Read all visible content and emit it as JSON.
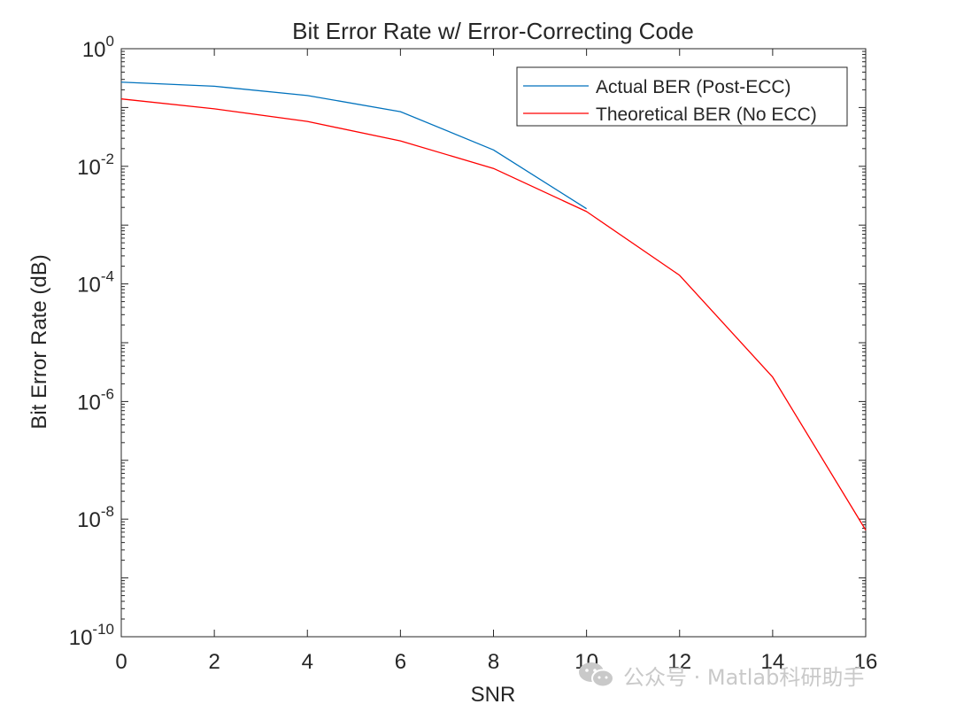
{
  "chart_data": {
    "type": "line",
    "title": "Bit Error Rate w/ Error-Correcting Code",
    "xlabel": "SNR",
    "ylabel": "Bit Error Rate (dB)",
    "xscale": "linear",
    "yscale": "log",
    "xlim": [
      0,
      16
    ],
    "ylim": [
      1e-10,
      1
    ],
    "xticks": [
      0,
      2,
      4,
      6,
      8,
      10,
      12,
      14,
      16
    ],
    "xtick_labels": [
      "0",
      "2",
      "4",
      "6",
      "8",
      "10",
      "12",
      "14",
      "16"
    ],
    "yticks": [
      {
        "value": 1e-10,
        "base": "10",
        "exp": "-10"
      },
      {
        "value": 1e-08,
        "base": "10",
        "exp": "-8"
      },
      {
        "value": 1e-06,
        "base": "10",
        "exp": "-6"
      },
      {
        "value": 0.0001,
        "base": "10",
        "exp": "-4"
      },
      {
        "value": 0.01,
        "base": "10",
        "exp": "-2"
      },
      {
        "value": 1,
        "base": "10",
        "exp": "0"
      }
    ],
    "grid": false,
    "legend_position": "top-right",
    "series": [
      {
        "name": "Actual BER (Post-ECC)",
        "color": "#0072BD",
        "x": [
          0,
          2,
          4,
          6,
          8,
          10
        ],
        "y": [
          0.27,
          0.23,
          0.16,
          0.085,
          0.019,
          0.0019
        ]
      },
      {
        "name": "Theoretical BER (No ECC)",
        "color": "#FF0000",
        "x": [
          0,
          2,
          4,
          6,
          8,
          10,
          12,
          14,
          16
        ],
        "y": [
          0.14,
          0.095,
          0.058,
          0.027,
          0.0092,
          0.0017,
          0.00014,
          2.6e-06,
          6.5e-09
        ]
      }
    ]
  },
  "watermark": {
    "text": "公众号 · Matlab科研助手",
    "icon": "wechat-icon"
  }
}
